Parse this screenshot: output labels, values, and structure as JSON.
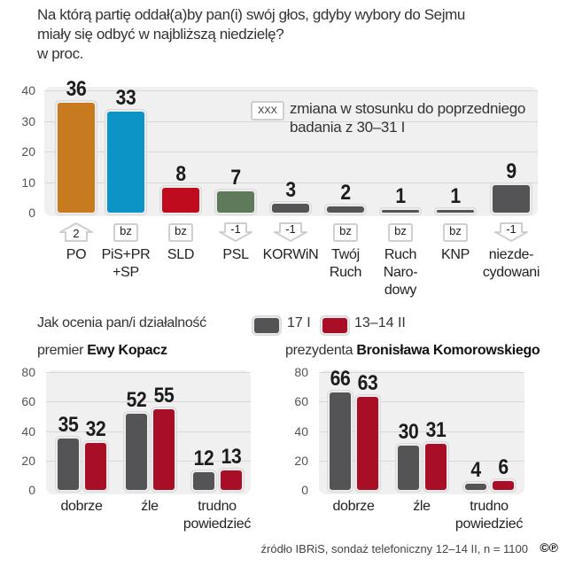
{
  "title": {
    "line1": "Na którą partię oddał(a)by pan(i) swój głos, gdyby wybory do Sejmu",
    "line2": "miały się odbyć w najbliższą niedzielę?",
    "line3": "w proc."
  },
  "legend_change": {
    "box_label": "XXX",
    "text": "zmiana w stosunku do poprzedniego\nbadania z 30–31 I"
  },
  "assessment": {
    "question": "Jak ocenia pan/i działalność",
    "series_labels": [
      "17 I",
      "13–14 II"
    ],
    "left_title_prefix": "premier",
    "left_title_bold": "Ewy Kopacz",
    "right_title_prefix": "prezydenta",
    "right_title_bold": "Bronisława Komorowskiego"
  },
  "source": "źródło IBRiS, sondaż telefoniczny 12–14 II, n = 1100",
  "copyright_mark": "©℗",
  "colors": {
    "PO": "#c87a1e",
    "PiS": "#0d94c6",
    "SLD": "#c00a1e",
    "PSL": "#5f7a5a",
    "gray": "#545456",
    "red": "#a80f26",
    "panel": "#f0f0f0"
  },
  "chart_data": [
    {
      "type": "bar",
      "title": "Na którą partię oddał(a)by pan(i) swój głos, gdyby wybory do Sejmu miały się odbyć w najbliższą niedzielę?",
      "ylabel": "w proc.",
      "ylim": [
        0,
        40
      ],
      "yticks": [
        0,
        10,
        20,
        30,
        40
      ],
      "grid": true,
      "categories": [
        "PO",
        "PiS+PR\n+SP",
        "SLD",
        "PSL",
        "KORWiN",
        "Twój\nRuch",
        "Ruch\nNaro-\ndowy",
        "KNP",
        "niezde-\ncydowani"
      ],
      "values": [
        36,
        33,
        8,
        7,
        3,
        2,
        1,
        1,
        9
      ],
      "value_labels": [
        "36",
        "33",
        "8",
        "7",
        "3",
        "2",
        "1",
        "1",
        "9"
      ],
      "changes": [
        {
          "label": "2",
          "direction": "up"
        },
        {
          "label": "bz",
          "direction": "none"
        },
        {
          "label": "bz",
          "direction": "none"
        },
        {
          "label": "-1",
          "direction": "down"
        },
        {
          "label": "-1",
          "direction": "down"
        },
        {
          "label": "bz",
          "direction": "none"
        },
        {
          "label": "bz",
          "direction": "none"
        },
        {
          "label": "bz",
          "direction": "none"
        },
        {
          "label": "-1",
          "direction": "down"
        }
      ],
      "bar_colors": [
        "#c87a1e",
        "#0d94c6",
        "#c00a1e",
        "#5f7a5a",
        "#545456",
        "#545456",
        "#545456",
        "#545456",
        "#545456"
      ]
    },
    {
      "type": "bar",
      "title": "premier Ewy Kopacz",
      "ylim": [
        0,
        80
      ],
      "yticks": [
        0,
        20,
        40,
        60,
        80
      ],
      "grid": true,
      "categories": [
        "dobrze",
        "źle",
        "trudno\npowiedzieć"
      ],
      "series": [
        {
          "name": "17 I",
          "values": [
            35,
            52,
            12
          ],
          "color": "#545456"
        },
        {
          "name": "13–14 II",
          "values": [
            32,
            55,
            13
          ],
          "color": "#a80f26"
        }
      ]
    },
    {
      "type": "bar",
      "title": "prezydenta Bronisława Komorowskiego",
      "ylim": [
        0,
        80
      ],
      "yticks": [
        0,
        20,
        40,
        60,
        80
      ],
      "grid": true,
      "categories": [
        "dobrze",
        "źle",
        "trudno\npowiedzieć"
      ],
      "series": [
        {
          "name": "17 I",
          "values": [
            66,
            30,
            4
          ],
          "color": "#545456"
        },
        {
          "name": "13–14 II",
          "values": [
            63,
            31,
            6
          ],
          "color": "#a80f26"
        }
      ]
    }
  ]
}
